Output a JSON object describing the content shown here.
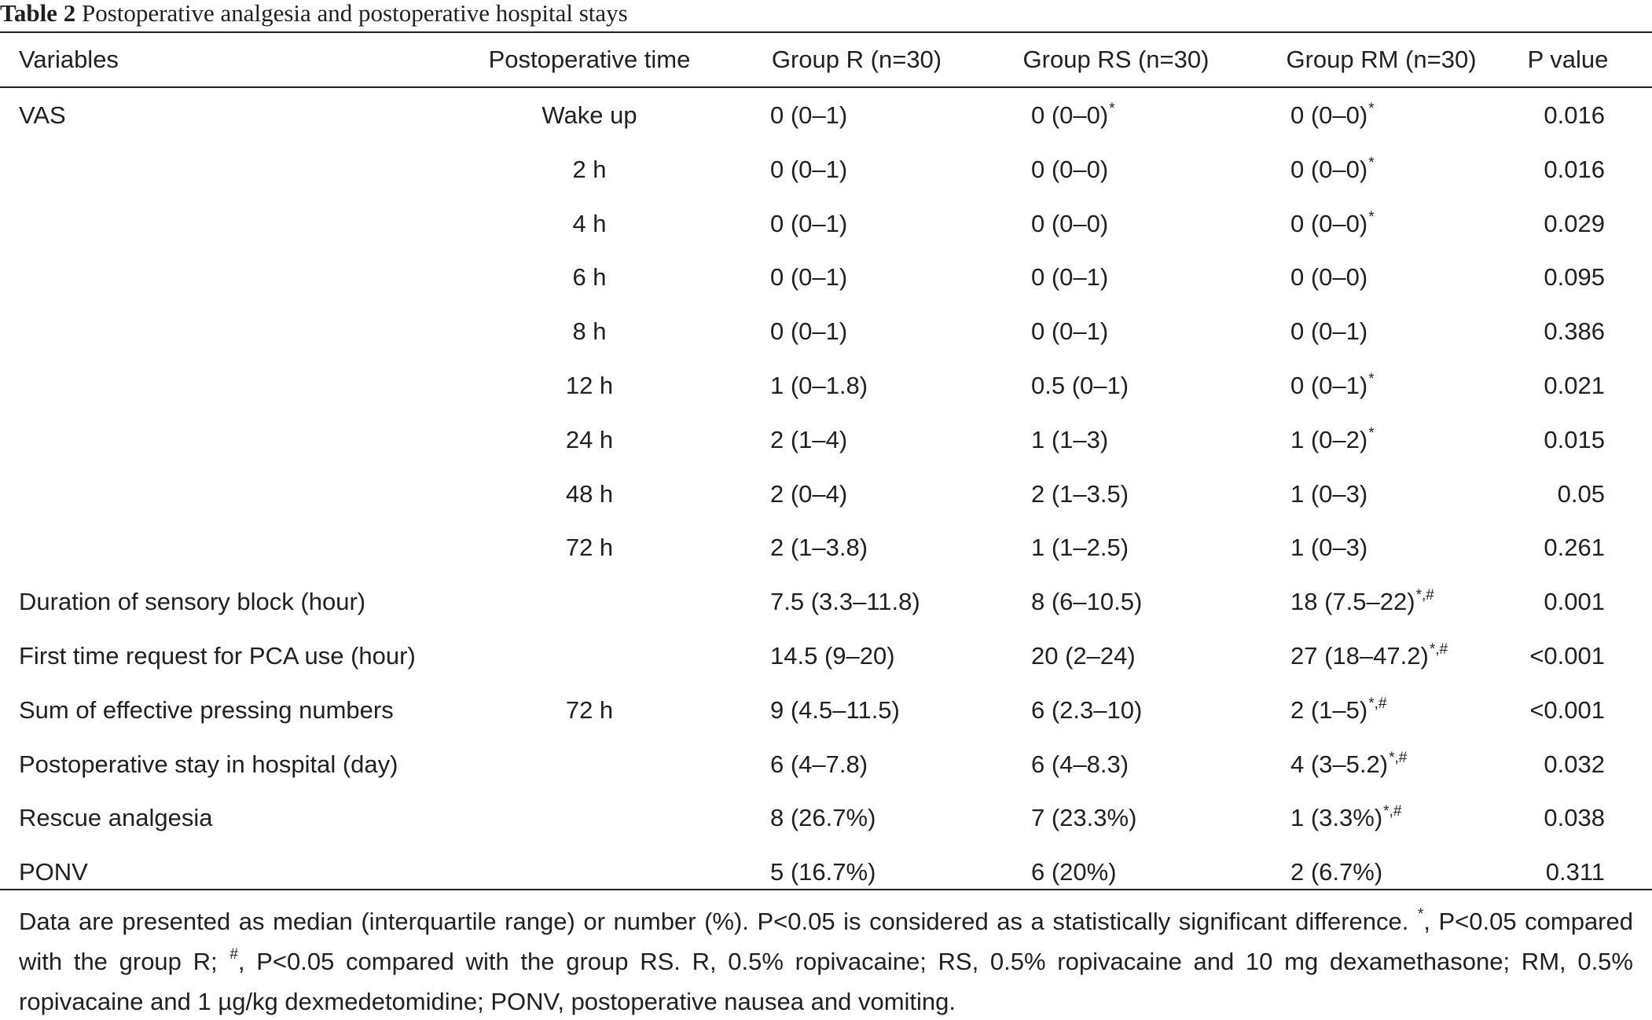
{
  "caption": {
    "label": "Table 2",
    "title": "Postoperative analgesia and postoperative hospital stays"
  },
  "headers": [
    "Variables",
    "Postoperative time",
    "Group R (n=30)",
    "Group RS (n=30)",
    "Group RM (n=30)",
    "P value"
  ],
  "rows": [
    {
      "var": "VAS",
      "time": "Wake up",
      "r": "0 (0–1)",
      "r_sup": "",
      "rs": "0 (0–0)",
      "rs_sup": "*",
      "rm": "0 (0–0)",
      "rm_sup": "*",
      "p": "0.016"
    },
    {
      "var": "",
      "time": "2 h",
      "r": "0 (0–1)",
      "r_sup": "",
      "rs": "0 (0–0)",
      "rs_sup": "",
      "rm": "0 (0–0)",
      "rm_sup": "*",
      "p": "0.016"
    },
    {
      "var": "",
      "time": "4 h",
      "r": "0 (0–1)",
      "r_sup": "",
      "rs": "0 (0–0)",
      "rs_sup": "",
      "rm": "0 (0–0)",
      "rm_sup": "*",
      "p": "0.029"
    },
    {
      "var": "",
      "time": "6 h",
      "r": "0 (0–1)",
      "r_sup": "",
      "rs": "0 (0–1)",
      "rs_sup": "",
      "rm": "0 (0–0)",
      "rm_sup": "",
      "p": "0.095"
    },
    {
      "var": "",
      "time": "8 h",
      "r": "0 (0–1)",
      "r_sup": "",
      "rs": "0 (0–1)",
      "rs_sup": "",
      "rm": "0 (0–1)",
      "rm_sup": "",
      "p": "0.386"
    },
    {
      "var": "",
      "time": "12 h",
      "r": "1 (0–1.8)",
      "r_sup": "",
      "rs": "0.5 (0–1)",
      "rs_sup": "",
      "rm": "0 (0–1)",
      "rm_sup": "*",
      "p": "0.021"
    },
    {
      "var": "",
      "time": "24 h",
      "r": "2 (1–4)",
      "r_sup": "",
      "rs": "1 (1–3)",
      "rs_sup": "",
      "rm": "1 (0–2)",
      "rm_sup": "*",
      "p": "0.015"
    },
    {
      "var": "",
      "time": "48 h",
      "r": "2 (0–4)",
      "r_sup": "",
      "rs": "2 (1–3.5)",
      "rs_sup": "",
      "rm": "1 (0–3)",
      "rm_sup": "",
      "p": "0.05"
    },
    {
      "var": "",
      "time": "72 h",
      "r": "2 (1–3.8)",
      "r_sup": "",
      "rs": "1 (1–2.5)",
      "rs_sup": "",
      "rm": "1 (0–3)",
      "rm_sup": "",
      "p": "0.261"
    },
    {
      "var": "Duration of sensory block (hour)",
      "time": "",
      "r": "7.5 (3.3–11.8)",
      "r_sup": "",
      "rs": "8 (6–10.5)",
      "rs_sup": "",
      "rm": "18 (7.5–22)",
      "rm_sup": "*,#",
      "p": "0.001"
    },
    {
      "var": "First time request for PCA use (hour)",
      "time": "",
      "r": "14.5 (9–20)",
      "r_sup": "",
      "rs": "20 (2–24)",
      "rs_sup": "",
      "rm": "27 (18–47.2)",
      "rm_sup": "*,#",
      "p": "<0.001"
    },
    {
      "var": "Sum of effective pressing numbers",
      "time": "72 h",
      "r": "9 (4.5–11.5)",
      "r_sup": "",
      "rs": "6 (2.3–10)",
      "rs_sup": "",
      "rm": "2 (1–5)",
      "rm_sup": "*,#",
      "p": "<0.001"
    },
    {
      "var": "Postoperative stay in hospital (day)",
      "time": "",
      "r": "6 (4–7.8)",
      "r_sup": "",
      "rs": "6 (4–8.3)",
      "rs_sup": "",
      "rm": "4 (3–5.2)",
      "rm_sup": "*,#",
      "p": "0.032"
    },
    {
      "var": "Rescue analgesia",
      "time": "",
      "r": "8 (26.7%)",
      "r_sup": "",
      "rs": "7 (23.3%)",
      "rs_sup": "",
      "rm": "1 (3.3%)",
      "rm_sup": "*,#",
      "p": "0.038"
    },
    {
      "var": "PONV",
      "time": "",
      "r": "5 (16.7%)",
      "r_sup": "",
      "rs": "6 (20%)",
      "rs_sup": "",
      "rm": "2 (6.7%)",
      "rm_sup": "",
      "p": "0.311"
    }
  ],
  "footnote": {
    "part1": "Data are presented as median (interquartile range) or number (%). P<0.05 is considered as a statistically significant difference. ",
    "sym1": "*",
    "part2": ", P<0.05 compared with the group R; ",
    "sym2": "#",
    "part3": ", P<0.05 compared with the group RS. R, 0.5% ropivacaine; RS, 0.5% ropivacaine and 10 mg dexamethasone; RM, 0.5% ropivacaine and 1 µg/kg dexmedetomidine; PONV, postoperative nausea and vomiting."
  }
}
